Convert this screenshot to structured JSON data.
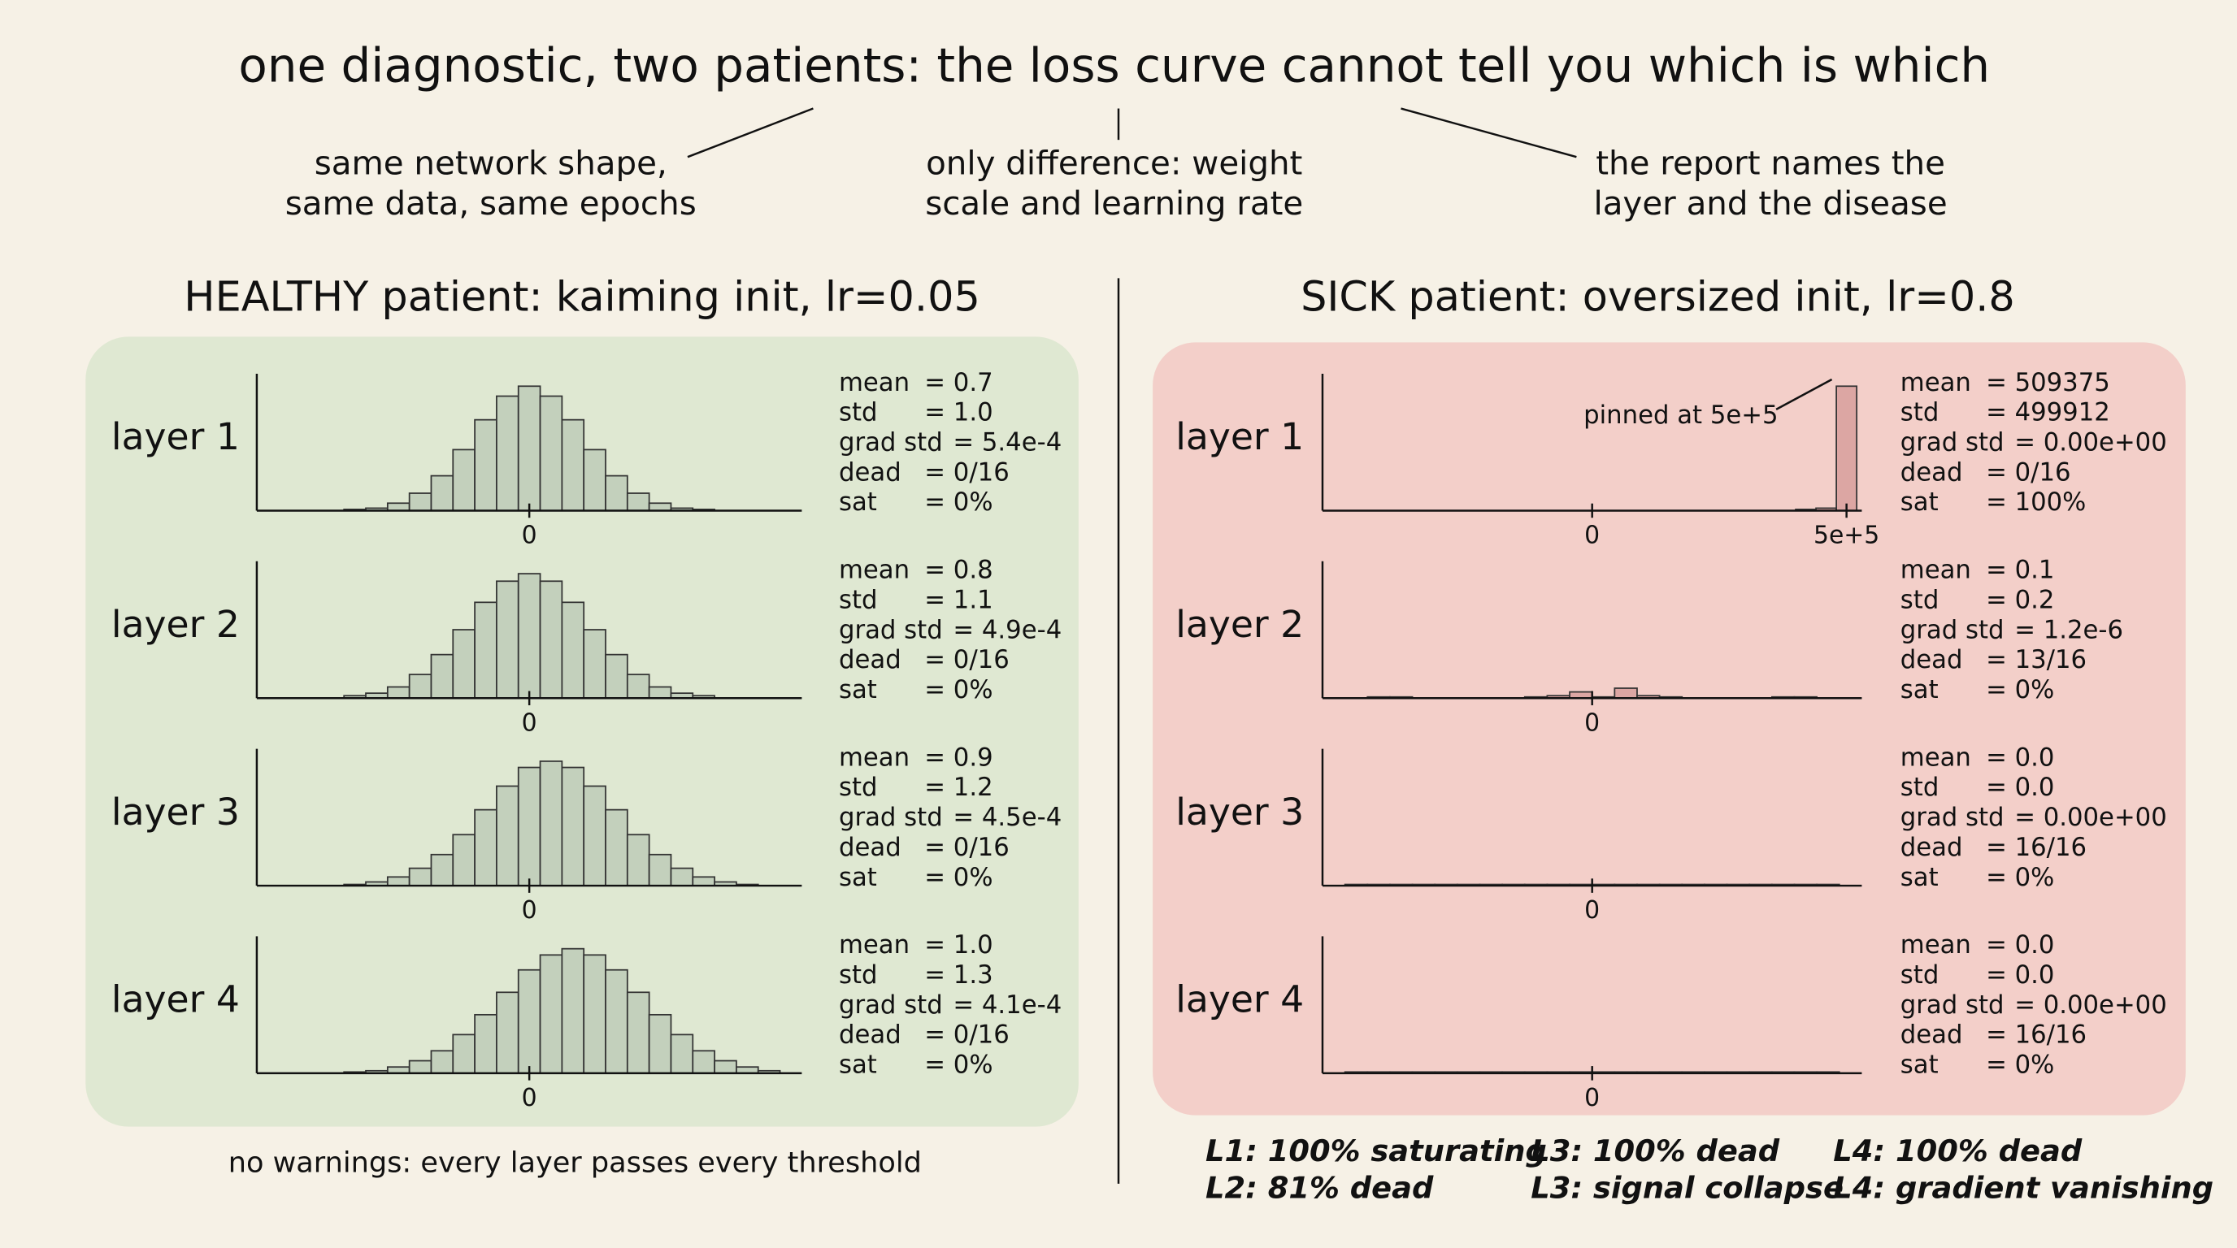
{
  "title": "one diagnostic, two patients: the loss curve cannot tell you which is which",
  "notes": [
    [
      "same network shape,",
      "same data, same epochs"
    ],
    [
      "only difference: weight",
      "scale and learning rate"
    ],
    [
      "the report names the",
      "layer and the disease"
    ]
  ],
  "panels": [
    {
      "heading": "HEALTHY patient: kaiming init, lr=0.05",
      "footer": [
        "no warnings: every layer passes every threshold"
      ]
    },
    {
      "heading": "SICK patient: oversized init, lr=0.8",
      "footer": [
        "L1: 100% saturating",
        "L2: 81% dead",
        "L3: 100% dead",
        "L3: signal collapse",
        "L4: 100% dead",
        "L4: gradient vanishing"
      ]
    }
  ],
  "chart_data": [
    {
      "type": "histogram",
      "label": "layer 1",
      "color": "#c3d0bc",
      "xlim": [
        -5,
        5
      ],
      "ylim": [
        0,
        110
      ],
      "xticks": [
        0
      ],
      "bins": [
        -3.4,
        -3.0,
        -2.6,
        -2.2,
        -1.8,
        -1.4,
        -1.0,
        -0.6,
        -0.2,
        0.2,
        0.6,
        1.0,
        1.4,
        1.8,
        2.2,
        2.6,
        3.0,
        3.4,
        3.8,
        4.2,
        4.6
      ],
      "values": [
        1,
        2,
        6,
        14,
        28,
        49,
        73,
        92,
        100,
        92,
        73,
        49,
        28,
        14,
        6,
        2,
        1,
        0,
        0,
        0
      ],
      "stats": [
        [
          "mean",
          "= 0.7"
        ],
        [
          "std",
          "= 1.0"
        ],
        [
          "grad std",
          "= 5.4e-4"
        ],
        [
          "dead",
          "= 0/16"
        ],
        [
          "sat",
          "= 0%"
        ]
      ]
    },
    {
      "type": "histogram",
      "label": "layer 2",
      "color": "#c3d0bc",
      "xlim": [
        -5,
        5
      ],
      "ylim": [
        0,
        110
      ],
      "xticks": [
        0
      ],
      "bins": [
        -3.4,
        -3.0,
        -2.6,
        -2.2,
        -1.8,
        -1.4,
        -1.0,
        -0.6,
        -0.2,
        0.2,
        0.6,
        1.0,
        1.4,
        1.8,
        2.2,
        2.6,
        3.0,
        3.4,
        3.8,
        4.2,
        4.6
      ],
      "values": [
        2,
        4,
        9,
        19,
        35,
        55,
        77,
        94,
        100,
        94,
        77,
        55,
        35,
        19,
        9,
        4,
        2,
        0,
        0,
        0
      ],
      "stats": [
        [
          "mean",
          "= 0.8"
        ],
        [
          "std",
          "= 1.1"
        ],
        [
          "grad std",
          "= 4.9e-4"
        ],
        [
          "dead",
          "= 0/16"
        ],
        [
          "sat",
          "= 0%"
        ]
      ]
    },
    {
      "type": "histogram",
      "label": "layer 3",
      "color": "#c3d0bc",
      "xlim": [
        -5,
        5
      ],
      "ylim": [
        0,
        110
      ],
      "xticks": [
        0
      ],
      "bins": [
        -3.4,
        -3.0,
        -2.6,
        -2.2,
        -1.8,
        -1.4,
        -1.0,
        -0.6,
        -0.2,
        0.2,
        0.6,
        1.0,
        1.4,
        1.8,
        2.2,
        2.6,
        3.0,
        3.4,
        3.8,
        4.2,
        4.6
      ],
      "values": [
        1,
        3,
        7,
        14,
        25,
        41,
        61,
        80,
        95,
        100,
        95,
        80,
        61,
        41,
        25,
        14,
        7,
        3,
        1,
        0
      ],
      "stats": [
        [
          "mean",
          "= 0.9"
        ],
        [
          "std",
          "= 1.2"
        ],
        [
          "grad std",
          "= 4.5e-4"
        ],
        [
          "dead",
          "= 0/16"
        ],
        [
          "sat",
          "= 0%"
        ]
      ]
    },
    {
      "type": "histogram",
      "label": "layer 4",
      "color": "#c3d0bc",
      "xlim": [
        -5,
        5
      ],
      "ylim": [
        0,
        110
      ],
      "xticks": [
        0
      ],
      "bins": [
        -3.4,
        -3.0,
        -2.6,
        -2.2,
        -1.8,
        -1.4,
        -1.0,
        -0.6,
        -0.2,
        0.2,
        0.6,
        1.0,
        1.4,
        1.8,
        2.2,
        2.6,
        3.0,
        3.4,
        3.8,
        4.2,
        4.6
      ],
      "values": [
        1,
        2,
        5,
        10,
        18,
        31,
        47,
        65,
        83,
        95,
        100,
        95,
        83,
        65,
        47,
        31,
        18,
        10,
        5,
        2
      ],
      "stats": [
        [
          "mean",
          "= 1.0"
        ],
        [
          "std",
          "= 1.3"
        ],
        [
          "grad std",
          "= 4.1e-4"
        ],
        [
          "dead",
          "= 0/16"
        ],
        [
          "sat",
          "= 0%"
        ]
      ]
    },
    {
      "type": "histogram",
      "label": "layer 1",
      "color": "#dca6a3",
      "xlim": [
        -530000,
        530000
      ],
      "ylim": [
        0,
        110
      ],
      "xticks": [
        0,
        {
          "value": 500000,
          "label": "5e+5"
        }
      ],
      "bins": [
        -520000,
        -480000,
        -440000,
        -400000,
        -360000,
        -320000,
        -280000,
        -240000,
        -200000,
        -160000,
        -120000,
        -80000,
        -40000,
        0,
        40000,
        80000,
        120000,
        160000,
        200000,
        240000,
        280000,
        320000,
        360000,
        400000,
        440000,
        480000,
        520000
      ],
      "values": [
        0,
        0,
        0,
        0,
        0,
        0,
        0,
        0,
        0,
        0,
        0,
        0,
        0,
        0,
        0,
        0,
        0,
        0,
        0,
        0,
        0,
        0,
        0,
        1,
        2,
        100
      ],
      "annotation": "pinned at 5e+5",
      "stats": [
        [
          "mean",
          "= 509375"
        ],
        [
          "std",
          "= 499912"
        ],
        [
          "grad std",
          "= 0.00e+00"
        ],
        [
          "dead",
          "= 0/16"
        ],
        [
          "sat",
          "= 100%"
        ]
      ]
    },
    {
      "type": "histogram",
      "label": "layer 2",
      "color": "#dca6a3",
      "xlim": [
        -1.5,
        1.5
      ],
      "ylim": [
        0,
        110
      ],
      "xticks": [
        0
      ],
      "bins": [
        -1.5,
        -1.375,
        -1.25,
        -1.125,
        -1,
        -0.875,
        -0.75,
        -0.625,
        -0.5,
        -0.375,
        -0.25,
        -0.125,
        0,
        0.125,
        0.25,
        0.375,
        0.5,
        0.625,
        0.75,
        0.875,
        1,
        1.125,
        1.25,
        1.375,
        1.5
      ],
      "values": [
        0,
        0,
        1,
        1,
        0,
        0,
        0,
        0,
        0,
        1,
        2,
        5,
        1,
        8,
        2,
        1,
        0,
        0,
        0,
        0,
        1,
        1,
        0,
        0
      ],
      "stats": [
        [
          "mean",
          "= 0.1"
        ],
        [
          "std",
          "= 0.2"
        ],
        [
          "grad std",
          "= 1.2e-6"
        ],
        [
          "dead",
          "= 13/16"
        ],
        [
          "sat",
          "= 0%"
        ]
      ]
    },
    {
      "type": "histogram",
      "label": "layer 3",
      "color": "#dca6a3",
      "xlim": [
        -1.5,
        1.5
      ],
      "ylim": [
        0,
        110
      ],
      "xticks": [
        0
      ],
      "bins": [
        -1.5,
        -1.375,
        -1.25,
        -1.125,
        -1,
        -0.875,
        -0.75,
        -0.625,
        -0.5,
        -0.375,
        -0.25,
        -0.125,
        0,
        0.125,
        0.25,
        0.375,
        0.5,
        0.625,
        0.75,
        0.875,
        1,
        1.125,
        1.25,
        1.375,
        1.5
      ],
      "values": [
        0,
        1,
        1,
        1,
        1,
        1,
        1,
        1,
        1,
        1,
        1,
        1,
        1,
        1,
        1,
        1,
        1,
        1,
        1,
        1,
        1,
        1,
        1,
        0
      ],
      "stats": [
        [
          "mean",
          "= 0.0"
        ],
        [
          "std",
          "= 0.0"
        ],
        [
          "grad std",
          "= 0.00e+00"
        ],
        [
          "dead",
          "= 16/16"
        ],
        [
          "sat",
          "= 0%"
        ]
      ]
    },
    {
      "type": "histogram",
      "label": "layer 4",
      "color": "#dca6a3",
      "xlim": [
        -1.5,
        1.5
      ],
      "ylim": [
        0,
        110
      ],
      "xticks": [
        0
      ],
      "bins": [
        -1.5,
        -1.375,
        -1.25,
        -1.125,
        -1,
        -0.875,
        -0.75,
        -0.625,
        -0.5,
        -0.375,
        -0.25,
        -0.125,
        0,
        0.125,
        0.25,
        0.375,
        0.5,
        0.625,
        0.75,
        0.875,
        1,
        1.125,
        1.25,
        1.375,
        1.5
      ],
      "values": [
        0,
        1,
        1,
        1,
        1,
        1,
        1,
        1,
        1,
        1,
        1,
        1,
        1,
        1,
        1,
        1,
        1,
        1,
        1,
        1,
        1,
        1,
        1,
        0
      ],
      "stats": [
        [
          "mean",
          "= 0.0"
        ],
        [
          "std",
          "= 0.0"
        ],
        [
          "grad std",
          "= 0.00e+00"
        ],
        [
          "dead",
          "= 16/16"
        ],
        [
          "sat",
          "= 0%"
        ]
      ]
    }
  ]
}
